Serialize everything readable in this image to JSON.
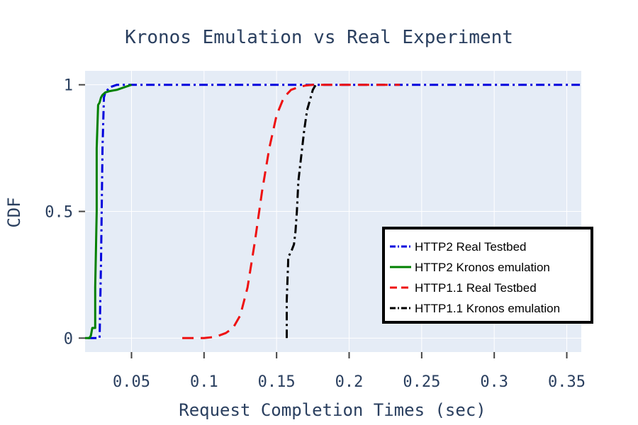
{
  "chart_data": {
    "type": "line",
    "title": "Kronos Emulation vs Real Experiment",
    "xlabel": "Request Completion Times (sec)",
    "ylabel": "CDF",
    "xlim": [
      0.018,
      0.36
    ],
    "ylim": [
      -0.055,
      1.055
    ],
    "x_ticks": [
      0.05,
      0.1,
      0.15,
      0.2,
      0.25,
      0.3,
      0.35
    ],
    "x_tick_labels": [
      "0.05",
      "0.1",
      "0.15",
      "0.2",
      "0.25",
      "0.3",
      "0.35"
    ],
    "y_ticks": [
      0,
      0.5,
      1
    ],
    "y_tick_labels": [
      "0",
      "0.5",
      "1"
    ],
    "grid": true,
    "legend_position": "bottom-right",
    "series": [
      {
        "name": "HTTP2 Real Testbed",
        "color": "#0000dd",
        "dash": "dashdot",
        "x": [
          0.02,
          0.028,
          0.029,
          0.03,
          0.031,
          0.032,
          0.035,
          0.04,
          0.05,
          0.1,
          0.2,
          0.3,
          0.36
        ],
        "y": [
          0.0,
          0.0,
          0.3,
          0.75,
          0.95,
          0.97,
          0.99,
          1.0,
          1.0,
          1.0,
          1.0,
          1.0,
          1.0
        ]
      },
      {
        "name": "HTTP2 Kronos emulation",
        "color": "#008000",
        "dash": "solid",
        "x": [
          0.018,
          0.021,
          0.022,
          0.023,
          0.025,
          0.025,
          0.026,
          0.026,
          0.027,
          0.028,
          0.029,
          0.03,
          0.032,
          0.035,
          0.04,
          0.045,
          0.05
        ],
        "y": [
          0.0,
          0.0,
          0.01,
          0.04,
          0.04,
          0.2,
          0.5,
          0.75,
          0.92,
          0.93,
          0.95,
          0.96,
          0.97,
          0.975,
          0.98,
          0.99,
          1.0
        ]
      },
      {
        "name": "HTTP1.1 Real Testbed",
        "color": "#ee1111",
        "dash": "dash",
        "x": [
          0.085,
          0.1,
          0.108,
          0.115,
          0.12,
          0.125,
          0.13,
          0.135,
          0.14,
          0.145,
          0.15,
          0.155,
          0.16,
          0.165,
          0.17,
          0.175,
          0.18,
          0.2,
          0.235
        ],
        "y": [
          0.0,
          0.0,
          0.005,
          0.02,
          0.04,
          0.09,
          0.2,
          0.38,
          0.58,
          0.75,
          0.88,
          0.95,
          0.98,
          0.99,
          0.997,
          1.0,
          1.0,
          1.0,
          1.0
        ]
      },
      {
        "name": "HTTP1.1 Kronos emulation",
        "color": "#000000",
        "dash": "dashdot",
        "x": [
          0.157,
          0.157,
          0.158,
          0.158,
          0.16,
          0.162,
          0.163,
          0.164,
          0.165,
          0.167,
          0.169,
          0.171,
          0.173,
          0.175,
          0.177
        ],
        "y": [
          0.0,
          0.15,
          0.3,
          0.32,
          0.34,
          0.37,
          0.42,
          0.5,
          0.62,
          0.72,
          0.82,
          0.9,
          0.94,
          0.98,
          1.0
        ]
      }
    ]
  }
}
